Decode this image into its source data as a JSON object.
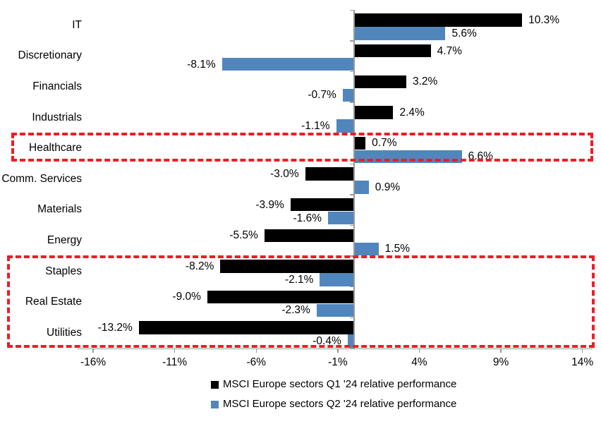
{
  "chart_data": {
    "type": "bar",
    "orientation": "horizontal",
    "title": "",
    "categories": [
      "IT",
      "Discretionary",
      "Financials",
      "Industrials",
      "Healthcare",
      "Comm. Services",
      "Materials",
      "Energy",
      "Staples",
      "Real Estate",
      "Utilities"
    ],
    "series": [
      {
        "name": "MSCI Europe sectors Q1 '24 relative performance",
        "color": "#000000",
        "values": [
          10.3,
          4.7,
          3.2,
          2.4,
          0.7,
          -3.0,
          -3.9,
          -5.5,
          -8.2,
          -9.0,
          -13.2
        ],
        "labels": [
          "10.3%",
          "4.7%",
          "3.2%",
          "2.4%",
          "0.7%",
          "-3.0%",
          "-3.9%",
          "-5.5%",
          "-8.2%",
          "-9.0%",
          "-13.2%"
        ]
      },
      {
        "name": "MSCI Europe sectors Q2 '24 relative performance",
        "color": "#5086BC",
        "values": [
          5.6,
          -8.1,
          -0.7,
          -1.1,
          6.6,
          0.9,
          -1.6,
          1.5,
          -2.1,
          -2.3,
          -0.4
        ],
        "labels": [
          "5.6%",
          "-8.1%",
          "-0.7%",
          "-1.1%",
          "6.6%",
          "0.9%",
          "-1.6%",
          "1.5%",
          "-2.1%",
          "-2.3%",
          "-0.4%"
        ]
      }
    ],
    "x_axis": {
      "tick_labels": [
        "-16%",
        "-11%",
        "-6%",
        "-1%",
        "4%",
        "9%",
        "14%"
      ],
      "tick_values": [
        -16,
        -11,
        -6,
        -1,
        4,
        9,
        14
      ],
      "min": -17,
      "max": 14.6,
      "unit": "%"
    },
    "grid": false,
    "legend_position": "bottom",
    "axis_color": "#999999",
    "value_labels": "outside-end",
    "highlight_boxes": [
      {
        "categories": [
          "Healthcare"
        ],
        "color": "#ee1c25",
        "style": "dashed"
      },
      {
        "categories": [
          "Staples",
          "Real Estate",
          "Utilities"
        ],
        "color": "#ee1c25",
        "style": "dashed"
      }
    ]
  }
}
